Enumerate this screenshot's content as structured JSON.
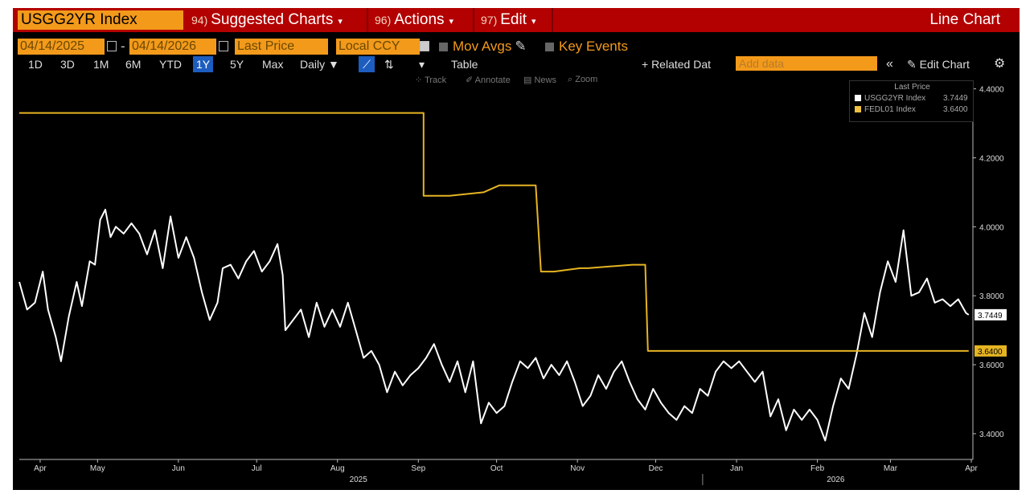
{
  "toolbar": {
    "ticker": "USGG2YR Index",
    "suggested_num": "94)",
    "suggested_label": "Suggested Charts",
    "actions_num": "96)",
    "actions_label": "Actions",
    "edit_num": "97)",
    "edit_label": "Edit",
    "chart_type": "Line Chart"
  },
  "settings": {
    "start_date": "04/14/2025",
    "end_date": "04/14/2026",
    "dash": "-",
    "field": "Last Price",
    "currency": "Local CCY",
    "mov_avgs": "Mov Avgs",
    "key_events": "Key Events"
  },
  "periods": [
    "1D",
    "3D",
    "1M",
    "6M",
    "YTD",
    "1Y",
    "5Y",
    "Max"
  ],
  "selected_period": "1Y",
  "frequency": "Daily",
  "table_label": "Table",
  "related_label": "+ Related Dat",
  "add_data_placeholder": "Add data",
  "collapse_label": "«",
  "edit_chart_label": "Edit Chart",
  "tools": [
    "Track",
    "Annotate",
    "News",
    "Zoom"
  ],
  "legend": {
    "header": "Last Price",
    "items": [
      {
        "name": "USGG2YR Index",
        "value": "3.7449",
        "color": "#ffffff"
      },
      {
        "name": "FEDL01 Index",
        "value": "3.6400",
        "color": "#f0c040"
      }
    ]
  },
  "chart_data": {
    "type": "line",
    "title": "",
    "xlabel": "",
    "ylabel": "",
    "ylim": [
      3.33,
      4.42
    ],
    "yticks": [
      "3.4000",
      "3.6000",
      "3.8000",
      "4.0000",
      "4.2000",
      "4.4000"
    ],
    "x_range": [
      0,
      365
    ],
    "x_ticks": [
      {
        "label": "Apr",
        "day": 8
      },
      {
        "label": "May",
        "day": 30
      },
      {
        "label": "Jun",
        "day": 61
      },
      {
        "label": "Jul",
        "day": 91
      },
      {
        "label": "Aug",
        "day": 122
      },
      {
        "label": "Sep",
        "day": 153
      },
      {
        "label": "Oct",
        "day": 183
      },
      {
        "label": "Nov",
        "day": 214
      },
      {
        "label": "Dec",
        "day": 244
      },
      {
        "label": "Jan",
        "day": 275
      },
      {
        "label": "Feb",
        "day": 306
      },
      {
        "label": "Mar",
        "day": 334
      },
      {
        "label": "Apr",
        "day": 365
      }
    ],
    "year_labels": [
      {
        "label": "2025",
        "day": 130
      },
      {
        "label": "2026",
        "day": 313
      }
    ],
    "last_values": [
      {
        "series": "USGG2YR Index",
        "label": "3.7449",
        "value": 3.7449
      },
      {
        "series": "FEDL01 Index",
        "label": "3.6400",
        "value": 3.64
      }
    ],
    "series": [
      {
        "name": "USGG2YR Index",
        "color": "#ffffff",
        "x": [
          0,
          3,
          6,
          9,
          11,
          14,
          16,
          19,
          22,
          24,
          27,
          29,
          31,
          33,
          35,
          37,
          40,
          43,
          46,
          49,
          52,
          55,
          58,
          61,
          64,
          67,
          70,
          73,
          76,
          78,
          81,
          84,
          87,
          90,
          93,
          96,
          99,
          101,
          102,
          105,
          108,
          111,
          114,
          117,
          120,
          123,
          126,
          129,
          132,
          135,
          138,
          141,
          144,
          147,
          150,
          153,
          156,
          159,
          162,
          165,
          168,
          171,
          174,
          177,
          180,
          183,
          186,
          189,
          192,
          195,
          198,
          201,
          204,
          207,
          210,
          213,
          216,
          219,
          222,
          225,
          228,
          231,
          234,
          237,
          240,
          243,
          246,
          249,
          252,
          255,
          258,
          261,
          264,
          267,
          270,
          273,
          276,
          279,
          282,
          285,
          288,
          291,
          294,
          297,
          300,
          303,
          306,
          309,
          312,
          315,
          318,
          321,
          324,
          327,
          330,
          333,
          336,
          339,
          342,
          345,
          348,
          351,
          354,
          357,
          360,
          363,
          364
        ],
        "values": [
          3.84,
          3.76,
          3.78,
          3.87,
          3.76,
          3.68,
          3.61,
          3.74,
          3.84,
          3.77,
          3.9,
          3.89,
          4.02,
          4.05,
          3.97,
          4.0,
          3.98,
          4.01,
          3.98,
          3.92,
          3.99,
          3.88,
          4.03,
          3.91,
          3.97,
          3.91,
          3.81,
          3.73,
          3.78,
          3.88,
          3.89,
          3.85,
          3.9,
          3.93,
          3.87,
          3.9,
          3.95,
          3.86,
          3.7,
          3.73,
          3.76,
          3.68,
          3.78,
          3.71,
          3.76,
          3.71,
          3.78,
          3.7,
          3.62,
          3.64,
          3.6,
          3.52,
          3.58,
          3.54,
          3.57,
          3.59,
          3.62,
          3.66,
          3.6,
          3.55,
          3.61,
          3.52,
          3.61,
          3.43,
          3.49,
          3.46,
          3.48,
          3.55,
          3.61,
          3.59,
          3.62,
          3.56,
          3.6,
          3.57,
          3.61,
          3.55,
          3.48,
          3.51,
          3.57,
          3.53,
          3.58,
          3.61,
          3.55,
          3.5,
          3.47,
          3.53,
          3.49,
          3.46,
          3.44,
          3.48,
          3.46,
          3.53,
          3.51,
          3.58,
          3.61,
          3.59,
          3.61,
          3.58,
          3.55,
          3.58,
          3.45,
          3.5,
          3.41,
          3.47,
          3.44,
          3.47,
          3.44,
          3.38,
          3.48,
          3.56,
          3.53,
          3.63,
          3.75,
          3.68,
          3.81,
          3.9,
          3.84,
          3.99,
          3.8,
          3.81,
          3.85,
          3.78,
          3.79,
          3.77,
          3.79,
          3.75,
          3.7449
        ]
      },
      {
        "name": "FEDL01 Index",
        "color": "#e6b422",
        "x": [
          0,
          155,
          155,
          158,
          165,
          178,
          184,
          198,
          200,
          205,
          215,
          218,
          235,
          240,
          241,
          364
        ],
        "values": [
          4.33,
          4.33,
          4.09,
          4.09,
          4.09,
          4.1,
          4.12,
          4.12,
          3.87,
          3.87,
          3.88,
          3.88,
          3.89,
          3.89,
          3.64,
          3.64
        ]
      }
    ]
  }
}
